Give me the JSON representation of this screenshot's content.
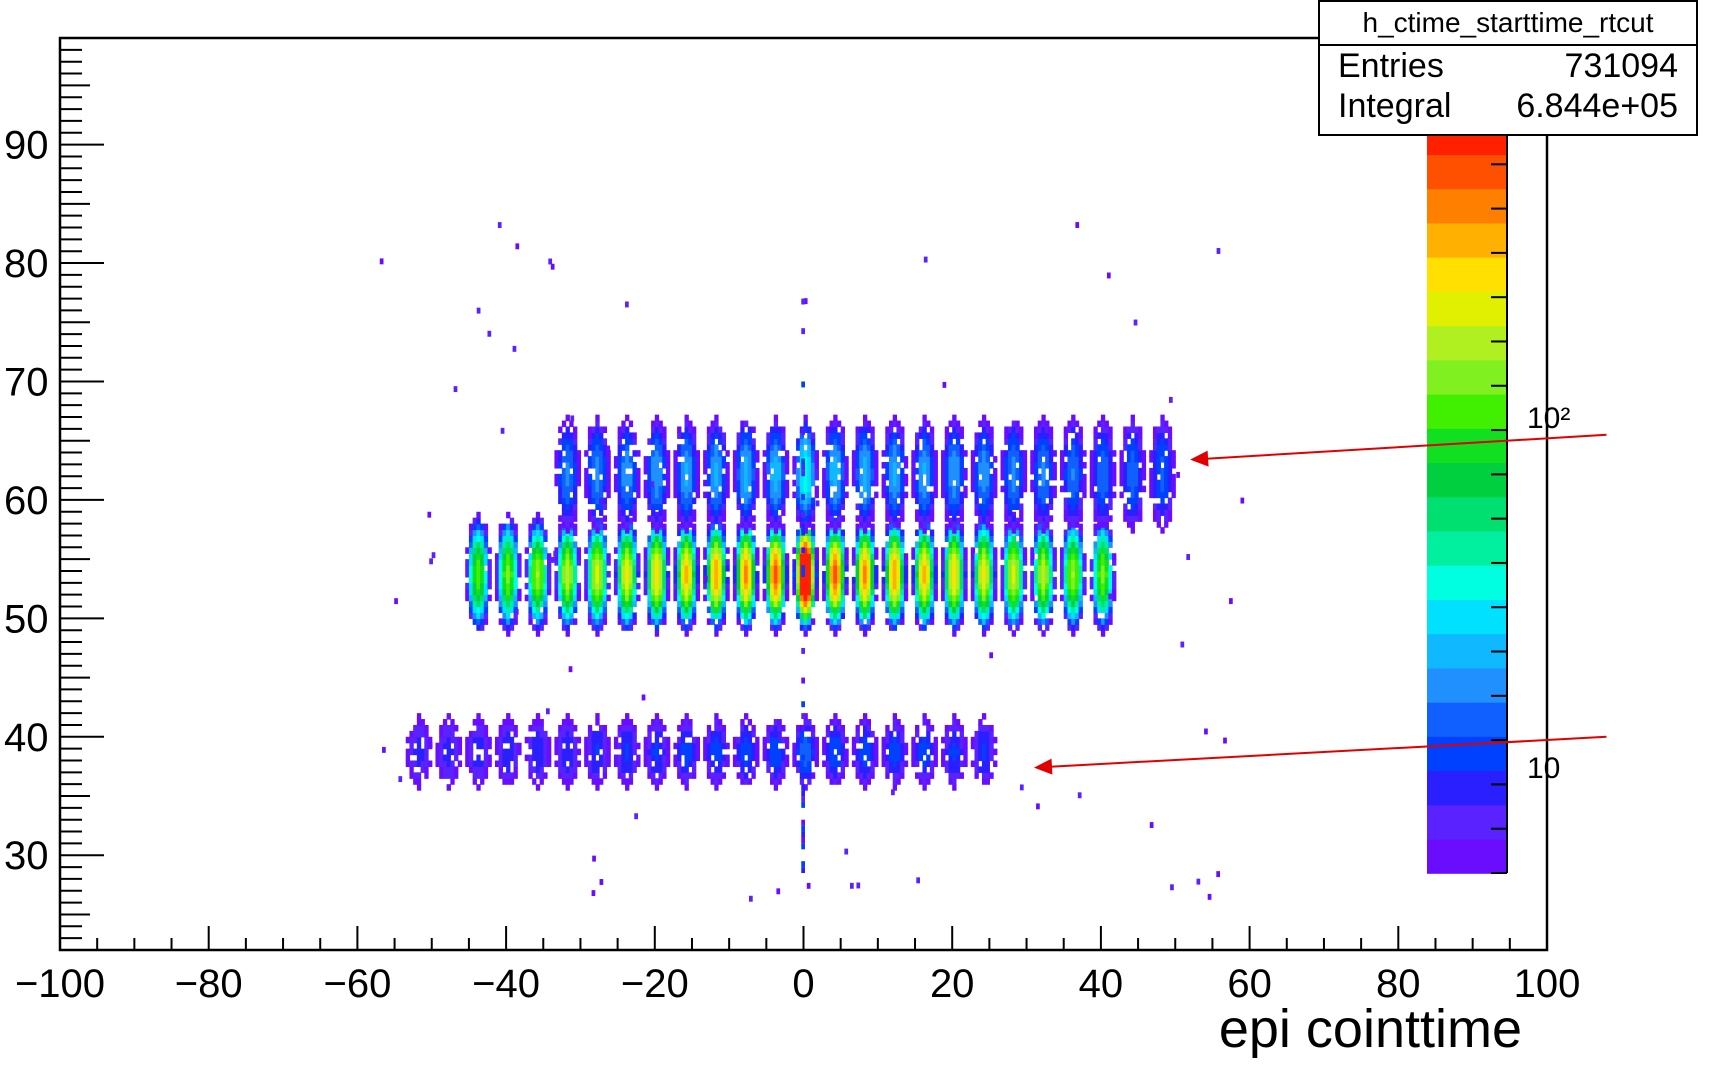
{
  "chart_data": {
    "type": "heatmap",
    "title": "h_ctime_starttime_rtcut",
    "xlabel": "epi cointtime",
    "ylabel": "",
    "xlim": [
      -100,
      100
    ],
    "ylim": [
      22,
      99
    ],
    "x_tick_labels": [
      "−100",
      "−80",
      "−60",
      "−40",
      "−20",
      "0",
      "20",
      "40",
      "60",
      "80",
      "100"
    ],
    "y_tick_labels": [
      "30",
      "40",
      "50",
      "60",
      "70",
      "80",
      "90"
    ],
    "color_scale": "log",
    "colorbar_labels": [
      "10",
      "10²"
    ],
    "palette": [
      "#6a0dff",
      "#5a22ff",
      "#2a20ff",
      "#0040ff",
      "#1060ff",
      "#2090ff",
      "#10b8ff",
      "#00e0ff",
      "#00ffe0",
      "#00f0a0",
      "#00e070",
      "#00d040",
      "#10e020",
      "#40f000",
      "#80f020",
      "#b0f020",
      "#e0f000",
      "#ffe000",
      "#ffb000",
      "#ff8000",
      "#ff5000",
      "#ff2000"
    ],
    "stats": {
      "name": "h_ctime_starttime_rtcut",
      "entries_label": "Entries",
      "entries": "731094",
      "integral_label": "Integral",
      "integral": "6.844e+05"
    },
    "bands": [
      {
        "y_center": 53.5,
        "y_half": 5.0,
        "x_start": -44,
        "x_end": 40,
        "spacing": 4,
        "peak_x": 0
      },
      {
        "y_center": 62.0,
        "y_half": 4.8,
        "x_start": -32,
        "x_end": 48,
        "spacing": 4,
        "peak_x": 0
      },
      {
        "y_center": 38.5,
        "y_half": 3.0,
        "x_start": -52,
        "x_end": 24,
        "spacing": 4,
        "peak_x": 0
      }
    ],
    "arrows": [
      {
        "from": [
          108,
          65.5
        ],
        "to": [
          52,
          63.4
        ]
      },
      {
        "from": [
          108,
          40.0
        ],
        "to": [
          31,
          37.4
        ]
      }
    ]
  }
}
